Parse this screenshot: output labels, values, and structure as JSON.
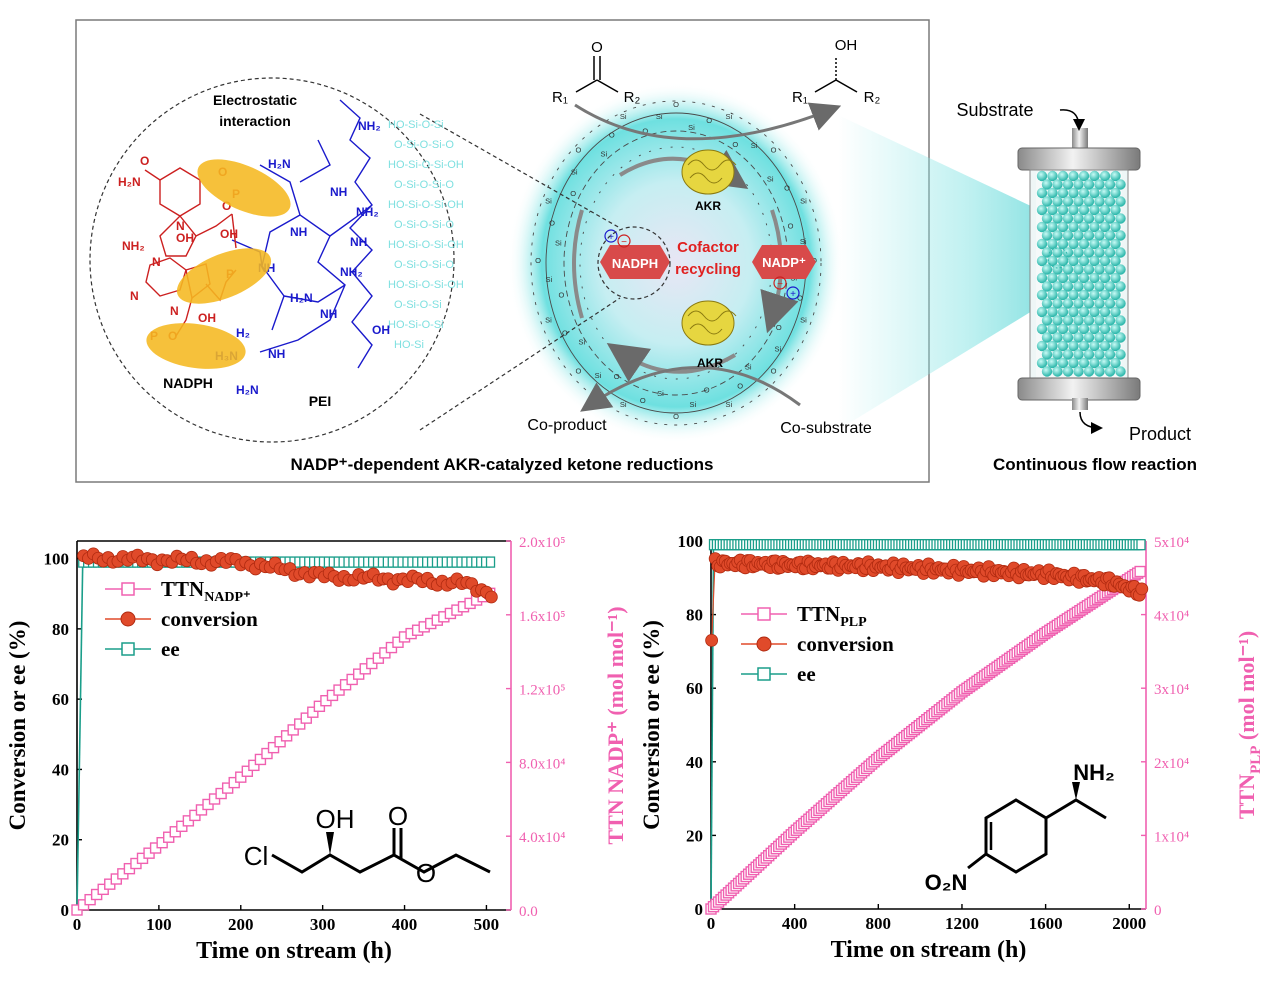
{
  "scheme": {
    "electrostatic_label": [
      "Electrostatic",
      "interaction"
    ],
    "nadph_label": "NADPH",
    "pei_label": "PEI",
    "enzyme_top": "AKR",
    "enzyme_bottom": "AKR",
    "cofactor_label": [
      "Cofactor",
      "recycling"
    ],
    "nadph_hex": "NADPH",
    "nadp_hex": "NADP⁺",
    "coproduct": "Co-product",
    "cosubstrate": "Co-substrate",
    "ketone": {
      "o": "O",
      "r1": "R₁",
      "r2": "R₂"
    },
    "alcohol": {
      "oh": "OH",
      "r1": "R₁",
      "r2": "R₂"
    },
    "caption": "NADP⁺-dependent AKR-catalyzed ketone reductions",
    "reactor": {
      "substrate": "Substrate",
      "product": "Product",
      "caption": "Continuous flow reaction"
    },
    "colors": {
      "nadph": "#cc2020",
      "pei": "#1a1acc",
      "silica": "#7fe0e0",
      "ellipse": "#f5b820",
      "hex": "#d84a4a",
      "teal": "#4fd1c8"
    }
  },
  "chart_data": [
    {
      "type": "scatter",
      "title": "",
      "xlabel": "Time on stream (h)",
      "ylabel": "Conversion or ee (%)",
      "y2label": "TTN NADP⁺ (mol mol⁻¹)",
      "xlim": [
        0,
        530
      ],
      "ylim": [
        0,
        105
      ],
      "y2lim": [
        0,
        200000
      ],
      "xticks": [
        0,
        100,
        200,
        300,
        400,
        500
      ],
      "yticks": [
        0,
        20,
        40,
        60,
        80,
        100
      ],
      "y2ticks": [
        0.0,
        40000,
        80000,
        120000,
        160000,
        200000
      ],
      "y2ticklabels": [
        "0.0",
        "4.0x10⁴",
        "8.0x10⁴",
        "1.2x10⁵",
        "1.6x10⁵",
        "2.0x10⁵"
      ],
      "legend": {
        "placement": "top-left",
        "entries": [
          "TTN_NADP+",
          "conversion",
          "ee"
        ],
        "ttn_main": "TTN",
        "ttn_sub": "NADP⁺",
        "conversion": "conversion",
        "ee": "ee"
      },
      "molecule": {
        "oh": "OH",
        "o": "O",
        "cl": "Cl",
        "o_ester": "O"
      },
      "series": [
        {
          "name": "ee",
          "axis": "left",
          "color": "#1a9e8a",
          "t_step": 6,
          "t_end": 510,
          "ramp": [
            [
              0,
              0
            ],
            [
              7,
              99
            ]
          ],
          "plateau": 99
        },
        {
          "name": "conversion",
          "axis": "left",
          "color": "#e04a2a",
          "t_step": 6,
          "t_end": 510,
          "profile": [
            [
              8,
              100.2
            ],
            [
              200,
              99
            ],
            [
              300,
              95
            ],
            [
              400,
              94
            ],
            [
              470,
              93
            ],
            [
              510,
              90
            ]
          ]
        },
        {
          "name": "TTN_NADP+",
          "axis": "right",
          "color": "#f060b0",
          "t_step": 8,
          "t_end": 510,
          "profile": [
            [
              0,
              0
            ],
            [
              100,
              35000
            ],
            [
              200,
              72000
            ],
            [
              300,
              112000
            ],
            [
              400,
              148000
            ],
            [
              510,
              173000
            ]
          ]
        }
      ]
    },
    {
      "type": "scatter",
      "title": "",
      "xlabel": "Time on stream (h)",
      "ylabel": "Conversion or ee (%)",
      "y2label": "TTN_PLP (mol mol⁻¹)",
      "xlim": [
        0,
        2080
      ],
      "ylim": [
        0,
        100
      ],
      "y2lim": [
        0,
        50000
      ],
      "xticks": [
        0,
        400,
        800,
        1200,
        1600,
        2000
      ],
      "yticks": [
        0,
        20,
        40,
        60,
        80,
        100
      ],
      "y2ticks": [
        0,
        10000,
        20000,
        30000,
        40000,
        50000
      ],
      "y2ticklabels": [
        "0",
        "1x10⁴",
        "2x10⁴",
        "3x10⁴",
        "4x10⁴",
        "5x10⁴"
      ],
      "legend": {
        "placement": "top-left",
        "entries": [
          "TTN_PLP",
          "conversion",
          "ee"
        ],
        "ttn_main": "TTN",
        "ttn_sub": "PLP",
        "conversion": "conversion",
        "ee": "ee"
      },
      "molecule": {
        "nh2": "NH₂",
        "no2": "O₂N"
      },
      "series": [
        {
          "name": "ee",
          "axis": "left",
          "color": "#1a9e8a",
          "t_step": 14,
          "t_end": 2060,
          "ramp": [
            [
              0,
              0
            ],
            [
              12,
              99
            ]
          ],
          "plateau": 99
        },
        {
          "name": "conversion",
          "axis": "left",
          "color": "#e04a2a",
          "t_step": 12,
          "t_end": 2060,
          "start": 73,
          "profile": [
            [
              20,
              94
            ],
            [
              400,
              93.5
            ],
            [
              800,
              93
            ],
            [
              1200,
              92
            ],
            [
              1600,
              91
            ],
            [
              1900,
              89
            ],
            [
              2060,
              86
            ]
          ]
        },
        {
          "name": "TTN_PLP",
          "axis": "right",
          "color": "#f060b0",
          "t_step": 12,
          "t_end": 2060,
          "profile": [
            [
              0,
              0
            ],
            [
              400,
              10500
            ],
            [
              800,
              20500
            ],
            [
              1200,
              29500
            ],
            [
              1600,
              37500
            ],
            [
              2060,
              46000
            ]
          ]
        }
      ]
    }
  ]
}
